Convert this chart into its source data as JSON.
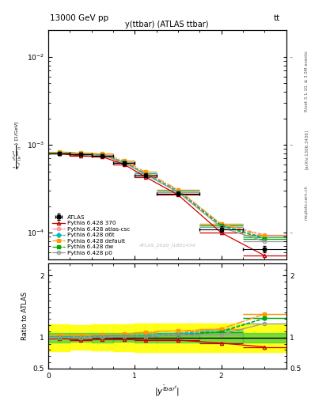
{
  "title_top": "13000 GeV pp",
  "title_right": "tt",
  "plot_title": "y(ttbar) (ATLAS ttbar)",
  "watermark": "ATLAS_2020_I1801434",
  "rivet_label": "Rivet 3.1.10, ≥ 3.5M events",
  "arxiv_label": "[arXiv:1306.3436]",
  "mcplots_label": "mcplots.cern.ch",
  "xlim": [
    0,
    2.75
  ],
  "ylim_main": [
    5e-05,
    0.02
  ],
  "ylim_ratio": [
    0.5,
    2.2
  ],
  "x_data": [
    0.125,
    0.375,
    0.625,
    0.875,
    1.125,
    1.5,
    2.0,
    2.5
  ],
  "x_bins": [
    0.0,
    0.25,
    0.5,
    0.75,
    1.0,
    1.25,
    1.75,
    2.25,
    2.75
  ],
  "atlas_xerr": [
    0.125,
    0.125,
    0.125,
    0.125,
    0.125,
    0.25,
    0.25,
    0.25
  ],
  "atlas_y": [
    0.0008,
    0.00078,
    0.00075,
    0.00062,
    0.00045,
    0.00028,
    0.00011,
    6.5e-05
  ],
  "atlas_yerr": [
    3e-05,
    3e-05,
    3e-05,
    3e-05,
    2e-05,
    1.5e-05,
    8e-06,
    5e-06
  ],
  "band_yellow_lo": [
    0.78,
    0.8,
    0.79,
    0.78,
    0.77,
    0.77,
    0.77,
    0.77
  ],
  "band_yellow_hi": [
    1.22,
    1.2,
    1.21,
    1.22,
    1.23,
    1.23,
    1.23,
    1.23
  ],
  "band_green_lo": [
    0.92,
    0.93,
    0.92,
    0.93,
    0.92,
    0.92,
    0.92,
    0.92
  ],
  "band_green_hi": [
    1.08,
    1.07,
    1.08,
    1.07,
    1.08,
    1.08,
    1.08,
    1.08
  ],
  "series": [
    {
      "name": "Pythia 6.428 370",
      "color": "#cc0000",
      "linestyle": "-",
      "marker": "^",
      "filled": false,
      "y": [
        0.00079,
        0.00075,
        0.00073,
        0.0006,
        0.00043,
        0.00027,
        0.0001,
        5.5e-05
      ],
      "ratio": [
        0.99,
        0.96,
        0.97,
        0.97,
        0.96,
        0.96,
        0.91,
        0.85
      ]
    },
    {
      "name": "Pythia 6.428 atlas-csc",
      "color": "#ff8888",
      "linestyle": "--",
      "marker": "o",
      "filled": false,
      "y": [
        0.00081,
        0.00079,
        0.00077,
        0.00064,
        0.00047,
        0.000305,
        0.000125,
        9.5e-05
      ],
      "ratio": [
        1.01,
        1.01,
        1.03,
        1.03,
        1.04,
        1.07,
        1.14,
        1.38
      ]
    },
    {
      "name": "Pythia 6.428 d6t",
      "color": "#00bbbb",
      "linestyle": "--",
      "marker": "D",
      "filled": true,
      "y": [
        0.000815,
        0.00079,
        0.00077,
        0.00064,
        0.00047,
        0.0003,
        0.000122,
        8.8e-05
      ],
      "ratio": [
        1.02,
        1.01,
        1.03,
        1.03,
        1.04,
        1.07,
        1.11,
        1.31
      ]
    },
    {
      "name": "Pythia 6.428 default",
      "color": "#ff9900",
      "linestyle": "-.",
      "marker": "s",
      "filled": true,
      "y": [
        0.00083,
        0.00081,
        0.00079,
        0.00066,
        0.00049,
        0.00031,
        0.000125,
        9.2e-05
      ],
      "ratio": [
        1.04,
        1.04,
        1.05,
        1.06,
        1.09,
        1.11,
        1.14,
        1.38
      ]
    },
    {
      "name": "Pythia 6.428 dw",
      "color": "#00aa00",
      "linestyle": "--",
      "marker": "s",
      "filled": true,
      "y": [
        0.0008,
        0.00078,
        0.00076,
        0.00063,
        0.00046,
        0.00029,
        0.00012,
        8.5e-05
      ],
      "ratio": [
        1.0,
        1.0,
        1.01,
        1.02,
        1.02,
        1.04,
        1.09,
        1.31
      ]
    },
    {
      "name": "Pythia 6.428 p0",
      "color": "#999999",
      "linestyle": "-",
      "marker": "o",
      "filled": false,
      "y": [
        0.0008,
        0.00078,
        0.00076,
        0.00063,
        0.00046,
        0.00029,
        0.000115,
        8e-05
      ],
      "ratio": [
        1.0,
        1.0,
        1.01,
        1.02,
        1.02,
        1.04,
        1.05,
        1.23
      ]
    }
  ]
}
